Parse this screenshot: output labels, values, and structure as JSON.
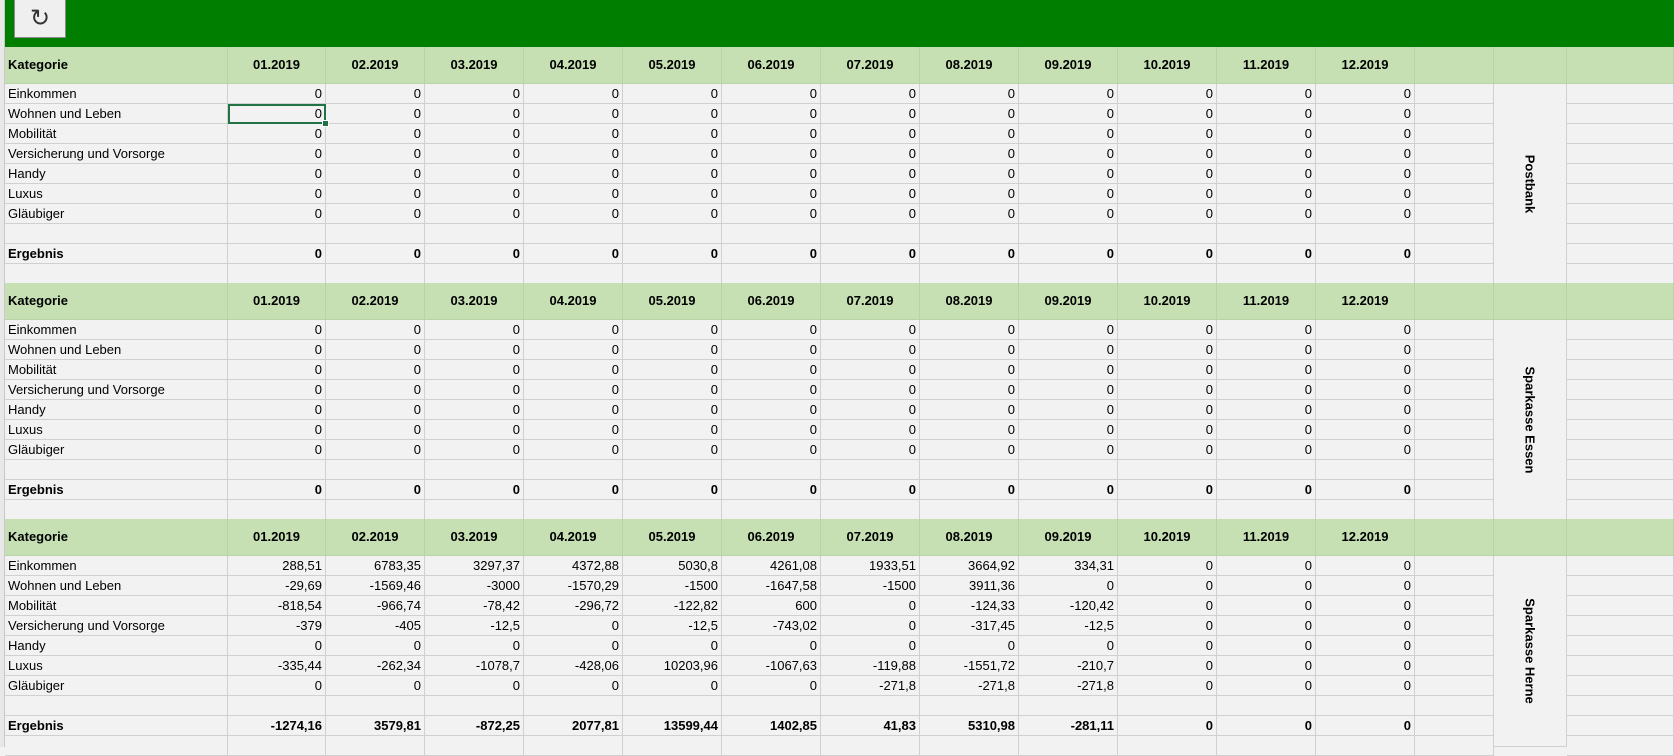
{
  "toolbar": {
    "refresh_icon": "refresh-icon",
    "refresh_glyph": "↻"
  },
  "colors": {
    "topbar": "#007e00",
    "header": "#c6e0b4",
    "selection": "#217346"
  },
  "tables": [
    {
      "name": "Postbank",
      "header_label": "Kategorie",
      "months": [
        "01.2019",
        "02.2019",
        "03.2019",
        "04.2019",
        "05.2019",
        "06.2019",
        "07.2019",
        "08.2019",
        "09.2019",
        "10.2019",
        "11.2019",
        "12.2019"
      ],
      "rows": [
        {
          "label": "Einkommen",
          "values": [
            "0",
            "0",
            "0",
            "0",
            "0",
            "0",
            "0",
            "0",
            "0",
            "0",
            "0",
            "0"
          ]
        },
        {
          "label": "Wohnen und Leben",
          "values": [
            "0",
            "0",
            "0",
            "0",
            "0",
            "0",
            "0",
            "0",
            "0",
            "0",
            "0",
            "0"
          ]
        },
        {
          "label": "Mobilität",
          "values": [
            "0",
            "0",
            "0",
            "0",
            "0",
            "0",
            "0",
            "0",
            "0",
            "0",
            "0",
            "0"
          ]
        },
        {
          "label": "Versicherung und Vorsorge",
          "values": [
            "0",
            "0",
            "0",
            "0",
            "0",
            "0",
            "0",
            "0",
            "0",
            "0",
            "0",
            "0"
          ]
        },
        {
          "label": "Handy",
          "values": [
            "0",
            "0",
            "0",
            "0",
            "0",
            "0",
            "0",
            "0",
            "0",
            "0",
            "0",
            "0"
          ]
        },
        {
          "label": "Luxus",
          "values": [
            "0",
            "0",
            "0",
            "0",
            "0",
            "0",
            "0",
            "0",
            "0",
            "0",
            "0",
            "0"
          ]
        },
        {
          "label": "Gläubiger",
          "values": [
            "0",
            "0",
            "0",
            "0",
            "0",
            "0",
            "0",
            "0",
            "0",
            "0",
            "0",
            "0"
          ]
        }
      ],
      "result": {
        "label": "Ergebnis",
        "values": [
          "0",
          "0",
          "0",
          "0",
          "0",
          "0",
          "0",
          "0",
          "0",
          "0",
          "0",
          "0"
        ]
      }
    },
    {
      "name": "Sparkasse Essen",
      "header_label": "Kategorie",
      "months": [
        "01.2019",
        "02.2019",
        "03.2019",
        "04.2019",
        "05.2019",
        "06.2019",
        "07.2019",
        "08.2019",
        "09.2019",
        "10.2019",
        "11.2019",
        "12.2019"
      ],
      "rows": [
        {
          "label": "Einkommen",
          "values": [
            "0",
            "0",
            "0",
            "0",
            "0",
            "0",
            "0",
            "0",
            "0",
            "0",
            "0",
            "0"
          ]
        },
        {
          "label": "Wohnen und Leben",
          "values": [
            "0",
            "0",
            "0",
            "0",
            "0",
            "0",
            "0",
            "0",
            "0",
            "0",
            "0",
            "0"
          ]
        },
        {
          "label": "Mobilität",
          "values": [
            "0",
            "0",
            "0",
            "0",
            "0",
            "0",
            "0",
            "0",
            "0",
            "0",
            "0",
            "0"
          ]
        },
        {
          "label": "Versicherung und Vorsorge",
          "values": [
            "0",
            "0",
            "0",
            "0",
            "0",
            "0",
            "0",
            "0",
            "0",
            "0",
            "0",
            "0"
          ]
        },
        {
          "label": "Handy",
          "values": [
            "0",
            "0",
            "0",
            "0",
            "0",
            "0",
            "0",
            "0",
            "0",
            "0",
            "0",
            "0"
          ]
        },
        {
          "label": "Luxus",
          "values": [
            "0",
            "0",
            "0",
            "0",
            "0",
            "0",
            "0",
            "0",
            "0",
            "0",
            "0",
            "0"
          ]
        },
        {
          "label": "Gläubiger",
          "values": [
            "0",
            "0",
            "0",
            "0",
            "0",
            "0",
            "0",
            "0",
            "0",
            "0",
            "0",
            "0"
          ]
        }
      ],
      "result": {
        "label": "Ergebnis",
        "values": [
          "0",
          "0",
          "0",
          "0",
          "0",
          "0",
          "0",
          "0",
          "0",
          "0",
          "0",
          "0"
        ]
      }
    },
    {
      "name": "Sparkasse Herne",
      "header_label": "Kategorie",
      "months": [
        "01.2019",
        "02.2019",
        "03.2019",
        "04.2019",
        "05.2019",
        "06.2019",
        "07.2019",
        "08.2019",
        "09.2019",
        "10.2019",
        "11.2019",
        "12.2019"
      ],
      "rows": [
        {
          "label": "Einkommen",
          "values": [
            "288,51",
            "6783,35",
            "3297,37",
            "4372,88",
            "5030,8",
            "4261,08",
            "1933,51",
            "3664,92",
            "334,31",
            "0",
            "0",
            "0"
          ]
        },
        {
          "label": "Wohnen und Leben",
          "values": [
            "-29,69",
            "-1569,46",
            "-3000",
            "-1570,29",
            "-1500",
            "-1647,58",
            "-1500",
            "3911,36",
            "0",
            "0",
            "0",
            "0"
          ]
        },
        {
          "label": "Mobilität",
          "values": [
            "-818,54",
            "-966,74",
            "-78,42",
            "-296,72",
            "-122,82",
            "600",
            "0",
            "-124,33",
            "-120,42",
            "0",
            "0",
            "0"
          ]
        },
        {
          "label": "Versicherung und Vorsorge",
          "values": [
            "-379",
            "-405",
            "-12,5",
            "0",
            "-12,5",
            "-743,02",
            "0",
            "-317,45",
            "-12,5",
            "0",
            "0",
            "0"
          ]
        },
        {
          "label": "Handy",
          "values": [
            "0",
            "0",
            "0",
            "0",
            "0",
            "0",
            "0",
            "0",
            "0",
            "0",
            "0",
            "0"
          ]
        },
        {
          "label": "Luxus",
          "values": [
            "-335,44",
            "-262,34",
            "-1078,7",
            "-428,06",
            "10203,96",
            "-1067,63",
            "-119,88",
            "-1551,72",
            "-210,7",
            "0",
            "0",
            "0"
          ]
        },
        {
          "label": "Gläubiger",
          "values": [
            "0",
            "0",
            "0",
            "0",
            "0",
            "0",
            "-271,8",
            "-271,8",
            "-271,8",
            "0",
            "0",
            "0"
          ]
        }
      ],
      "result": {
        "label": "Ergebnis",
        "values": [
          "-1274,16",
          "3579,81",
          "-872,25",
          "2077,81",
          "13599,44",
          "1402,85",
          "41,83",
          "5310,98",
          "-281,11",
          "0",
          "0",
          "0"
        ]
      }
    }
  ]
}
